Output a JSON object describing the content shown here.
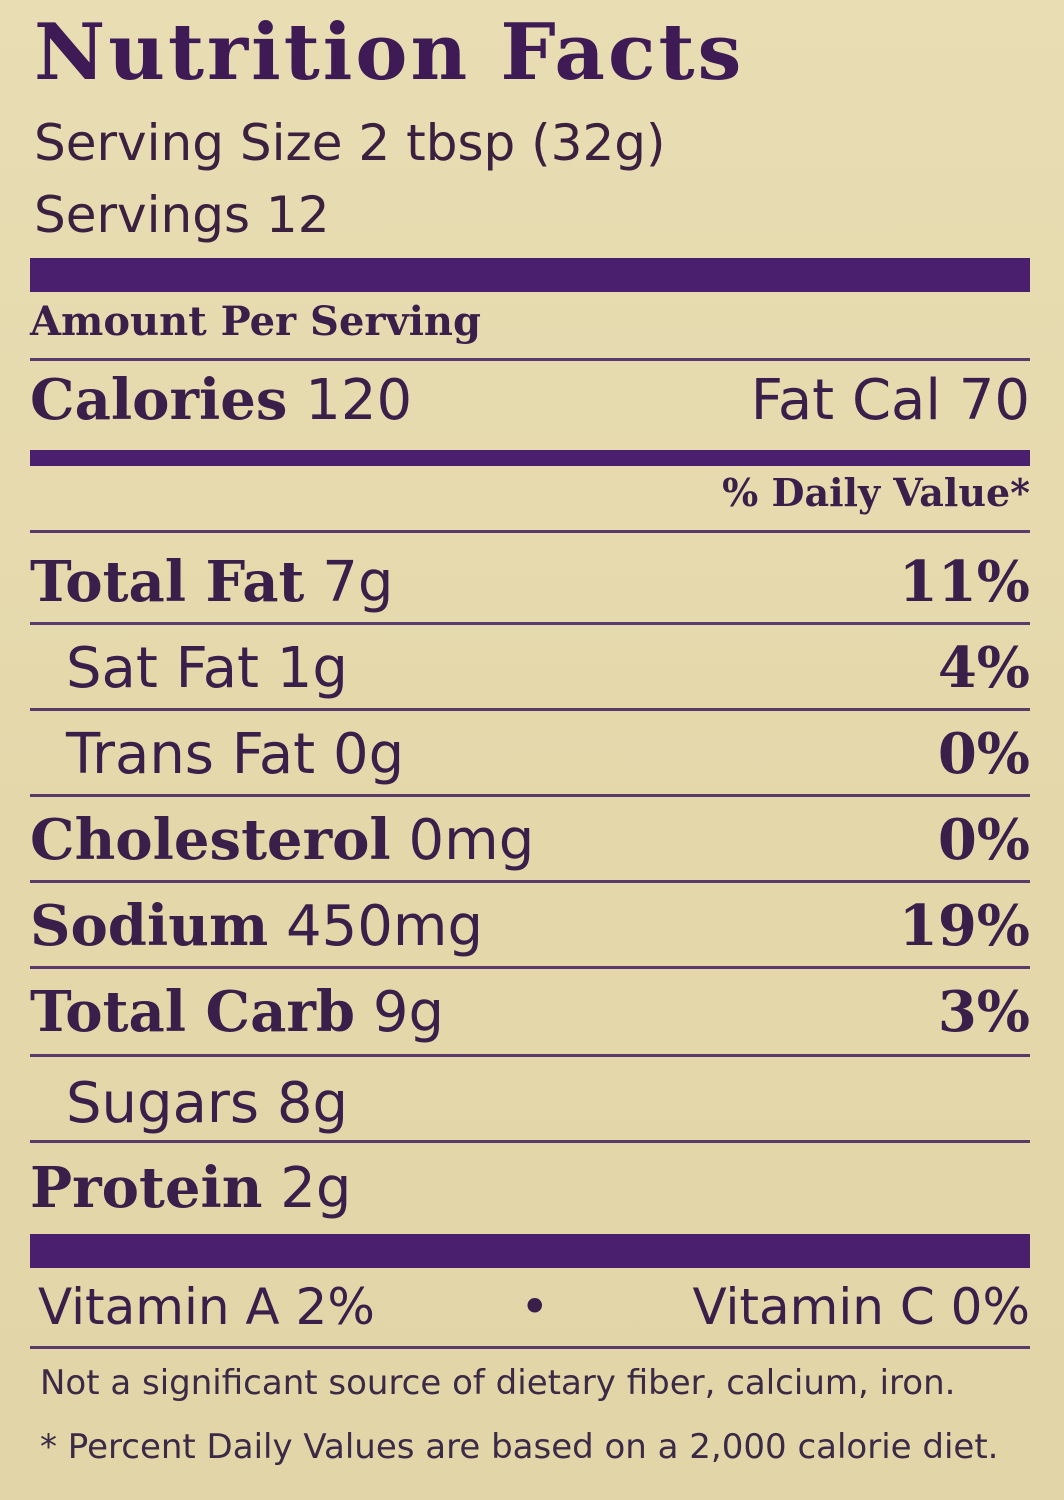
{
  "title": "Nutrition Facts",
  "serving_size": "Serving Size 2 tbsp (32g)",
  "servings": "Servings 12",
  "amount_per_serving": "Amount Per Serving",
  "calories": {
    "label": "Calories",
    "value": "120",
    "fat_cal_label": "Fat Cal",
    "fat_cal_value": "70"
  },
  "daily_value_header": "% Daily Value*",
  "nutrients": [
    {
      "name": "Total Fat",
      "amount": "7g",
      "dv": "11%"
    },
    {
      "name": "Sat Fat",
      "amount": "1g",
      "dv": "4%"
    },
    {
      "name": "Trans Fat",
      "amount": "0g",
      "dv": "0%"
    },
    {
      "name": "Cholesterol",
      "amount": "0mg",
      "dv": "0%"
    },
    {
      "name": "Sodium",
      "amount": "450mg",
      "dv": "19%"
    },
    {
      "name": "Total Carb",
      "amount": "9g",
      "dv": "3%"
    },
    {
      "name": "Sugars",
      "amount": "8g",
      "dv": ""
    },
    {
      "name": "Protein",
      "amount": "2g",
      "dv": ""
    }
  ],
  "vitamins": {
    "a": "Vitamin A  2%",
    "bullet": "•",
    "c": "Vitamin C  0%"
  },
  "footnote_1": "Not a significant source of dietary fiber, calcium, iron.",
  "footnote_2": "* Percent Daily Values are based on a 2,000 calorie diet.",
  "colors": {
    "ink": "#3e1b55",
    "background": "#e6dbb0",
    "rule": "#4a1f6e"
  }
}
